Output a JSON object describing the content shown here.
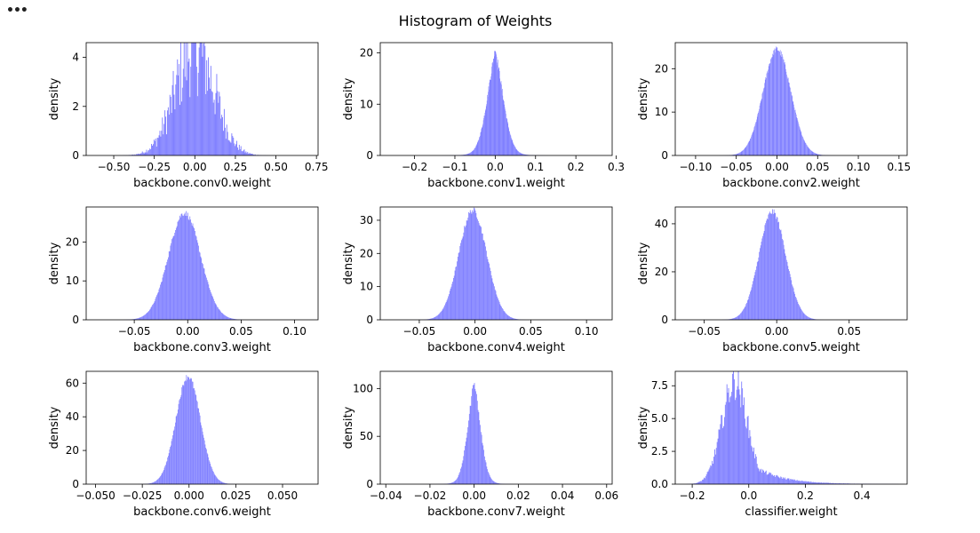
{
  "toolbar": {
    "menu_label": "•••"
  },
  "title": "Histogram of Weights",
  "colors": {
    "bar": "#8080ff",
    "axis": "#000000",
    "background": "#ffffff"
  },
  "chart_data": [
    {
      "type": "histogram",
      "xlabel": "backbone.conv0.weight",
      "ylabel": "density",
      "xlim": [
        -0.67,
        0.76
      ],
      "ylim": [
        0,
        4.6
      ],
      "xticks": [
        -0.5,
        -0.25,
        0.0,
        0.25,
        0.5,
        0.75
      ],
      "xticklabels": [
        "−0.50",
        "−0.25",
        "0.00",
        "0.25",
        "0.50",
        "0.75"
      ],
      "yticks": [
        0,
        2,
        4
      ],
      "yticklabels": [
        "0",
        "2",
        "4"
      ],
      "distribution": {
        "center": 0.0,
        "spread": 0.12,
        "peak": 4.4,
        "range": [
          -0.62,
          0.72
        ],
        "bins": 260,
        "noise": 0.45
      }
    },
    {
      "type": "histogram",
      "xlabel": "backbone.conv1.weight",
      "ylabel": "density",
      "xlim": [
        -0.285,
        0.29
      ],
      "ylim": [
        0,
        22
      ],
      "xticks": [
        -0.2,
        -0.1,
        0.0,
        0.1,
        0.2,
        0.3
      ],
      "xticklabels": [
        "−0.2",
        "−0.1",
        "0.0",
        "0.1",
        "0.2",
        "0.3"
      ],
      "yticks": [
        0,
        10,
        20
      ],
      "yticklabels": [
        "0",
        "10",
        "20"
      ],
      "distribution": {
        "center": 0.0,
        "spread": 0.022,
        "peak": 21,
        "range": [
          -0.13,
          0.13
        ],
        "bins": 260,
        "noise": 0.05,
        "tail": "laplace"
      }
    },
    {
      "type": "histogram",
      "xlabel": "backbone.conv2.weight",
      "ylabel": "density",
      "xlim": [
        -0.125,
        0.16
      ],
      "ylim": [
        0,
        26
      ],
      "xticks": [
        -0.1,
        -0.05,
        0.0,
        0.05,
        0.1,
        0.15
      ],
      "xticklabels": [
        "−0.10",
        "−0.05",
        "0.00",
        "0.05",
        "0.10",
        "0.15"
      ],
      "yticks": [
        0,
        10,
        20
      ],
      "yticklabels": [
        "0",
        "10",
        "20"
      ],
      "distribution": {
        "center": 0.0,
        "spread": 0.017,
        "peak": 24.5,
        "range": [
          -0.08,
          0.08
        ],
        "bins": 260,
        "noise": 0.03
      }
    },
    {
      "type": "histogram",
      "xlabel": "backbone.conv3.weight",
      "ylabel": "density",
      "xlim": [
        -0.095,
        0.122
      ],
      "ylim": [
        0,
        29
      ],
      "xticks": [
        -0.05,
        0.0,
        0.05,
        0.1
      ],
      "xticklabels": [
        "−0.05",
        "0.00",
        "0.05",
        "0.10"
      ],
      "yticks": [
        0,
        10,
        20
      ],
      "yticklabels": [
        "0",
        "10",
        "20"
      ],
      "distribution": {
        "center": -0.003,
        "spread": 0.015,
        "peak": 27.5,
        "range": [
          -0.075,
          0.1
        ],
        "bins": 260,
        "noise": 0.03
      }
    },
    {
      "type": "histogram",
      "xlabel": "backbone.conv4.weight",
      "ylabel": "density",
      "xlim": [
        -0.085,
        0.123
      ],
      "ylim": [
        0,
        34
      ],
      "xticks": [
        -0.05,
        0.0,
        0.05,
        0.1
      ],
      "xticklabels": [
        "−0.05",
        "0.00",
        "0.05",
        "0.10"
      ],
      "yticks": [
        0,
        10,
        20,
        30
      ],
      "yticklabels": [
        "0",
        "10",
        "20",
        "30"
      ],
      "distribution": {
        "center": -0.002,
        "spread": 0.0125,
        "peak": 33,
        "range": [
          -0.07,
          0.1
        ],
        "bins": 260,
        "noise": 0.03
      }
    },
    {
      "type": "histogram",
      "xlabel": "backbone.conv5.weight",
      "ylabel": "density",
      "xlim": [
        -0.07,
        0.09
      ],
      "ylim": [
        0,
        47
      ],
      "xticks": [
        -0.05,
        0.0,
        0.05
      ],
      "xticklabels": [
        "−0.05",
        "0.00",
        "0.05"
      ],
      "yticks": [
        0,
        20,
        40
      ],
      "yticklabels": [
        "0",
        "20",
        "40"
      ],
      "distribution": {
        "center": -0.003,
        "spread": 0.0092,
        "peak": 45,
        "range": [
          -0.055,
          0.07
        ],
        "bins": 260,
        "noise": 0.03
      }
    },
    {
      "type": "histogram",
      "xlabel": "backbone.conv6.weight",
      "ylabel": "density",
      "xlim": [
        -0.055,
        0.069
      ],
      "ylim": [
        0,
        67
      ],
      "xticks": [
        -0.05,
        -0.025,
        0.0,
        0.025,
        0.05
      ],
      "xticklabels": [
        "−0.050",
        "−0.025",
        "0.000",
        "0.025",
        "0.050"
      ],
      "yticks": [
        0,
        20,
        40,
        60
      ],
      "yticklabels": [
        "0",
        "20",
        "40",
        "60"
      ],
      "distribution": {
        "center": -0.0005,
        "spread": 0.0065,
        "peak": 64,
        "range": [
          -0.04,
          0.05
        ],
        "bins": 260,
        "noise": 0.03
      }
    },
    {
      "type": "histogram",
      "xlabel": "backbone.conv7.weight",
      "ylabel": "density",
      "xlim": [
        -0.0425,
        0.0625
      ],
      "ylim": [
        0,
        118
      ],
      "xticks": [
        -0.04,
        -0.02,
        0.0,
        0.02,
        0.04,
        0.06
      ],
      "xticklabels": [
        "−0.04",
        "−0.02",
        "0.00",
        "0.02",
        "0.04",
        "0.06"
      ],
      "yticks": [
        0,
        50,
        100
      ],
      "yticklabels": [
        "0",
        "50",
        "100"
      ],
      "distribution": {
        "center": 0.0,
        "spread": 0.0032,
        "peak": 111,
        "range": [
          -0.035,
          0.05
        ],
        "bins": 260,
        "noise": 0.04,
        "tail": "laplace"
      }
    },
    {
      "type": "histogram",
      "xlabel": "classifier.weight",
      "ylabel": "density",
      "xlim": [
        -0.26,
        0.56
      ],
      "ylim": [
        0,
        8.6
      ],
      "xticks": [
        -0.2,
        0.0,
        0.2,
        0.4
      ],
      "xticklabels": [
        "−0.2",
        "0.0",
        "0.2",
        "0.4"
      ],
      "yticks": [
        0,
        2.5,
        5.0,
        7.5
      ],
      "yticklabels": [
        "0.0",
        "2.5",
        "5.0",
        "7.5"
      ],
      "distribution": {
        "center": -0.05,
        "spread": 0.045,
        "peak": 7.8,
        "range": [
          -0.22,
          0.53
        ],
        "bins": 260,
        "noise": 0.18,
        "skew": 0.17
      }
    }
  ]
}
